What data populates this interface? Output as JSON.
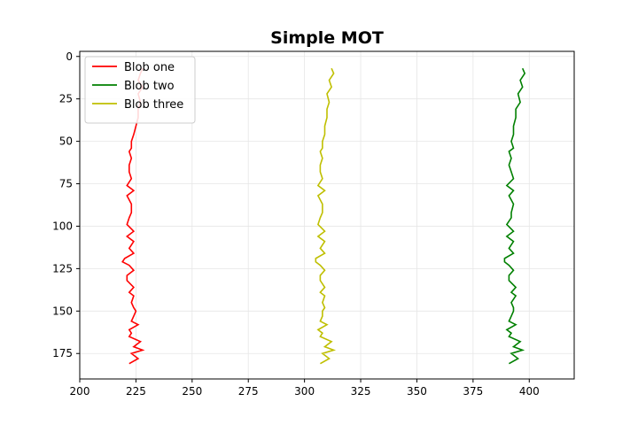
{
  "chart_data": {
    "type": "line",
    "title": "Simple MOT",
    "xlabel": "",
    "ylabel": "",
    "xlim": [
      200,
      420
    ],
    "ylim": [
      190,
      -3
    ],
    "y_inverted": true,
    "grid": true,
    "legend_position": "top-left",
    "xticks": [
      200,
      225,
      250,
      275,
      300,
      325,
      350,
      375,
      400
    ],
    "yticks": [
      0,
      25,
      50,
      75,
      100,
      125,
      150,
      175
    ],
    "series": [
      {
        "name": "Blob one",
        "color": "#ff0000",
        "x": [
          228,
          227,
          226,
          228,
          226,
          227,
          226,
          226,
          225,
          224,
          223,
          223,
          222,
          223,
          222,
          222,
          223,
          221,
          224,
          221,
          223,
          223,
          222,
          221,
          224,
          221,
          224,
          222,
          224,
          220,
          219,
          222,
          224,
          221,
          221,
          224,
          222,
          224,
          223,
          224,
          225,
          224,
          223,
          226,
          222,
          223,
          222,
          227,
          224,
          228,
          223,
          226,
          222
        ],
        "y": [
          7,
          10,
          14,
          18,
          22,
          27,
          31,
          36,
          41,
          46,
          50,
          54,
          56,
          60,
          64,
          68,
          72,
          76,
          79,
          82,
          87,
          92,
          95,
          99,
          103,
          106,
          109,
          113,
          116,
          119,
          121,
          123,
          126,
          129,
          132,
          136,
          139,
          141,
          145,
          148,
          150,
          153,
          156,
          158,
          161,
          163,
          165,
          168,
          171,
          173,
          175,
          178,
          181
        ]
      },
      {
        "name": "Blob two",
        "color": "#008000",
        "x": [
          397,
          398,
          396,
          397,
          395,
          396,
          394,
          394,
          393,
          393,
          392,
          393,
          391,
          392,
          391,
          392,
          393,
          390,
          393,
          391,
          393,
          392,
          392,
          390,
          393,
          390,
          393,
          391,
          393,
          389,
          389,
          391,
          393,
          391,
          391,
          394,
          392,
          394,
          392,
          393,
          393,
          392,
          391,
          394,
          390,
          392,
          391,
          396,
          393,
          397,
          392,
          395,
          391
        ],
        "y": [
          7,
          10,
          14,
          18,
          22,
          27,
          31,
          36,
          41,
          46,
          50,
          54,
          56,
          60,
          64,
          68,
          72,
          76,
          79,
          82,
          87,
          92,
          95,
          99,
          103,
          106,
          109,
          113,
          116,
          119,
          121,
          123,
          126,
          129,
          132,
          136,
          139,
          141,
          145,
          148,
          150,
          153,
          156,
          158,
          161,
          163,
          165,
          168,
          171,
          173,
          175,
          178,
          181
        ]
      },
      {
        "name": "Blob three",
        "color": "#bfbf00",
        "x": [
          312,
          313,
          311,
          312,
          310,
          311,
          310,
          310,
          309,
          309,
          308,
          308,
          307,
          308,
          307,
          307,
          308,
          306,
          309,
          306,
          308,
          308,
          307,
          306,
          309,
          306,
          309,
          307,
          309,
          305,
          305,
          307,
          309,
          307,
          307,
          309,
          307,
          309,
          308,
          309,
          308,
          308,
          307,
          310,
          306,
          308,
          307,
          312,
          309,
          313,
          308,
          311,
          307
        ],
        "y": [
          7,
          10,
          14,
          18,
          22,
          27,
          31,
          36,
          41,
          46,
          50,
          54,
          56,
          60,
          64,
          68,
          72,
          76,
          79,
          82,
          87,
          92,
          95,
          99,
          103,
          106,
          109,
          113,
          116,
          119,
          121,
          123,
          126,
          129,
          132,
          136,
          139,
          141,
          145,
          148,
          150,
          153,
          156,
          158,
          161,
          163,
          165,
          168,
          171,
          173,
          175,
          178,
          181
        ]
      }
    ]
  }
}
